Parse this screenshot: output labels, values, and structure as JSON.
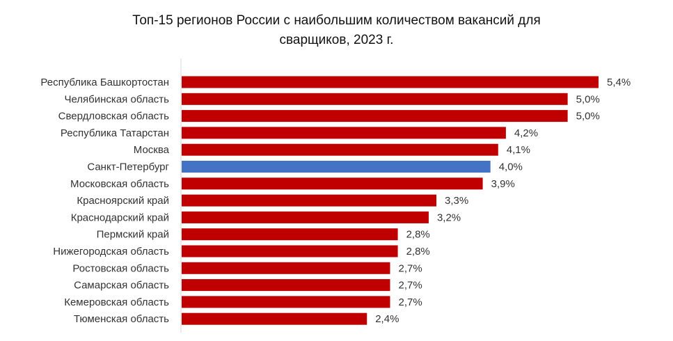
{
  "chart_data": {
    "type": "bar",
    "orientation": "horizontal",
    "title_line1": "Топ-15 регионов России с наибольшим количеством вакансий для",
    "title_line2": "сварщиков, 2023 г.",
    "xlabel": "",
    "ylabel": "",
    "grid": false,
    "legend": "none",
    "xlim": [
      0,
      5.4
    ],
    "categories": [
      "Республика Башкортостан",
      "Челябинская область",
      "Свердловская область",
      "Республика Татарстан",
      "Москва",
      "Санкт-Петербург",
      "Московская область",
      "Красноярский край",
      "Краснодарский край",
      "Пермский край",
      "Нижегородская область",
      "Ростовская область",
      "Самарская область",
      "Кемеровская область",
      "Тюменская область"
    ],
    "values": [
      5.4,
      5.0,
      5.0,
      4.2,
      4.1,
      4.0,
      3.9,
      3.3,
      3.2,
      2.8,
      2.8,
      2.7,
      2.7,
      2.7,
      2.4
    ],
    "value_labels": [
      "5,4%",
      "5,0%",
      "5,0%",
      "4,2%",
      "4,1%",
      "4,0%",
      "3,9%",
      "3,3%",
      "3,2%",
      "2,8%",
      "2,8%",
      "2,7%",
      "2,7%",
      "2,7%",
      "2,4%"
    ],
    "highlight_category": "Санкт-Петербург",
    "colors": {
      "bar": "#C00000",
      "highlight": "#4472C4",
      "axis": "#D9D9D9"
    }
  }
}
